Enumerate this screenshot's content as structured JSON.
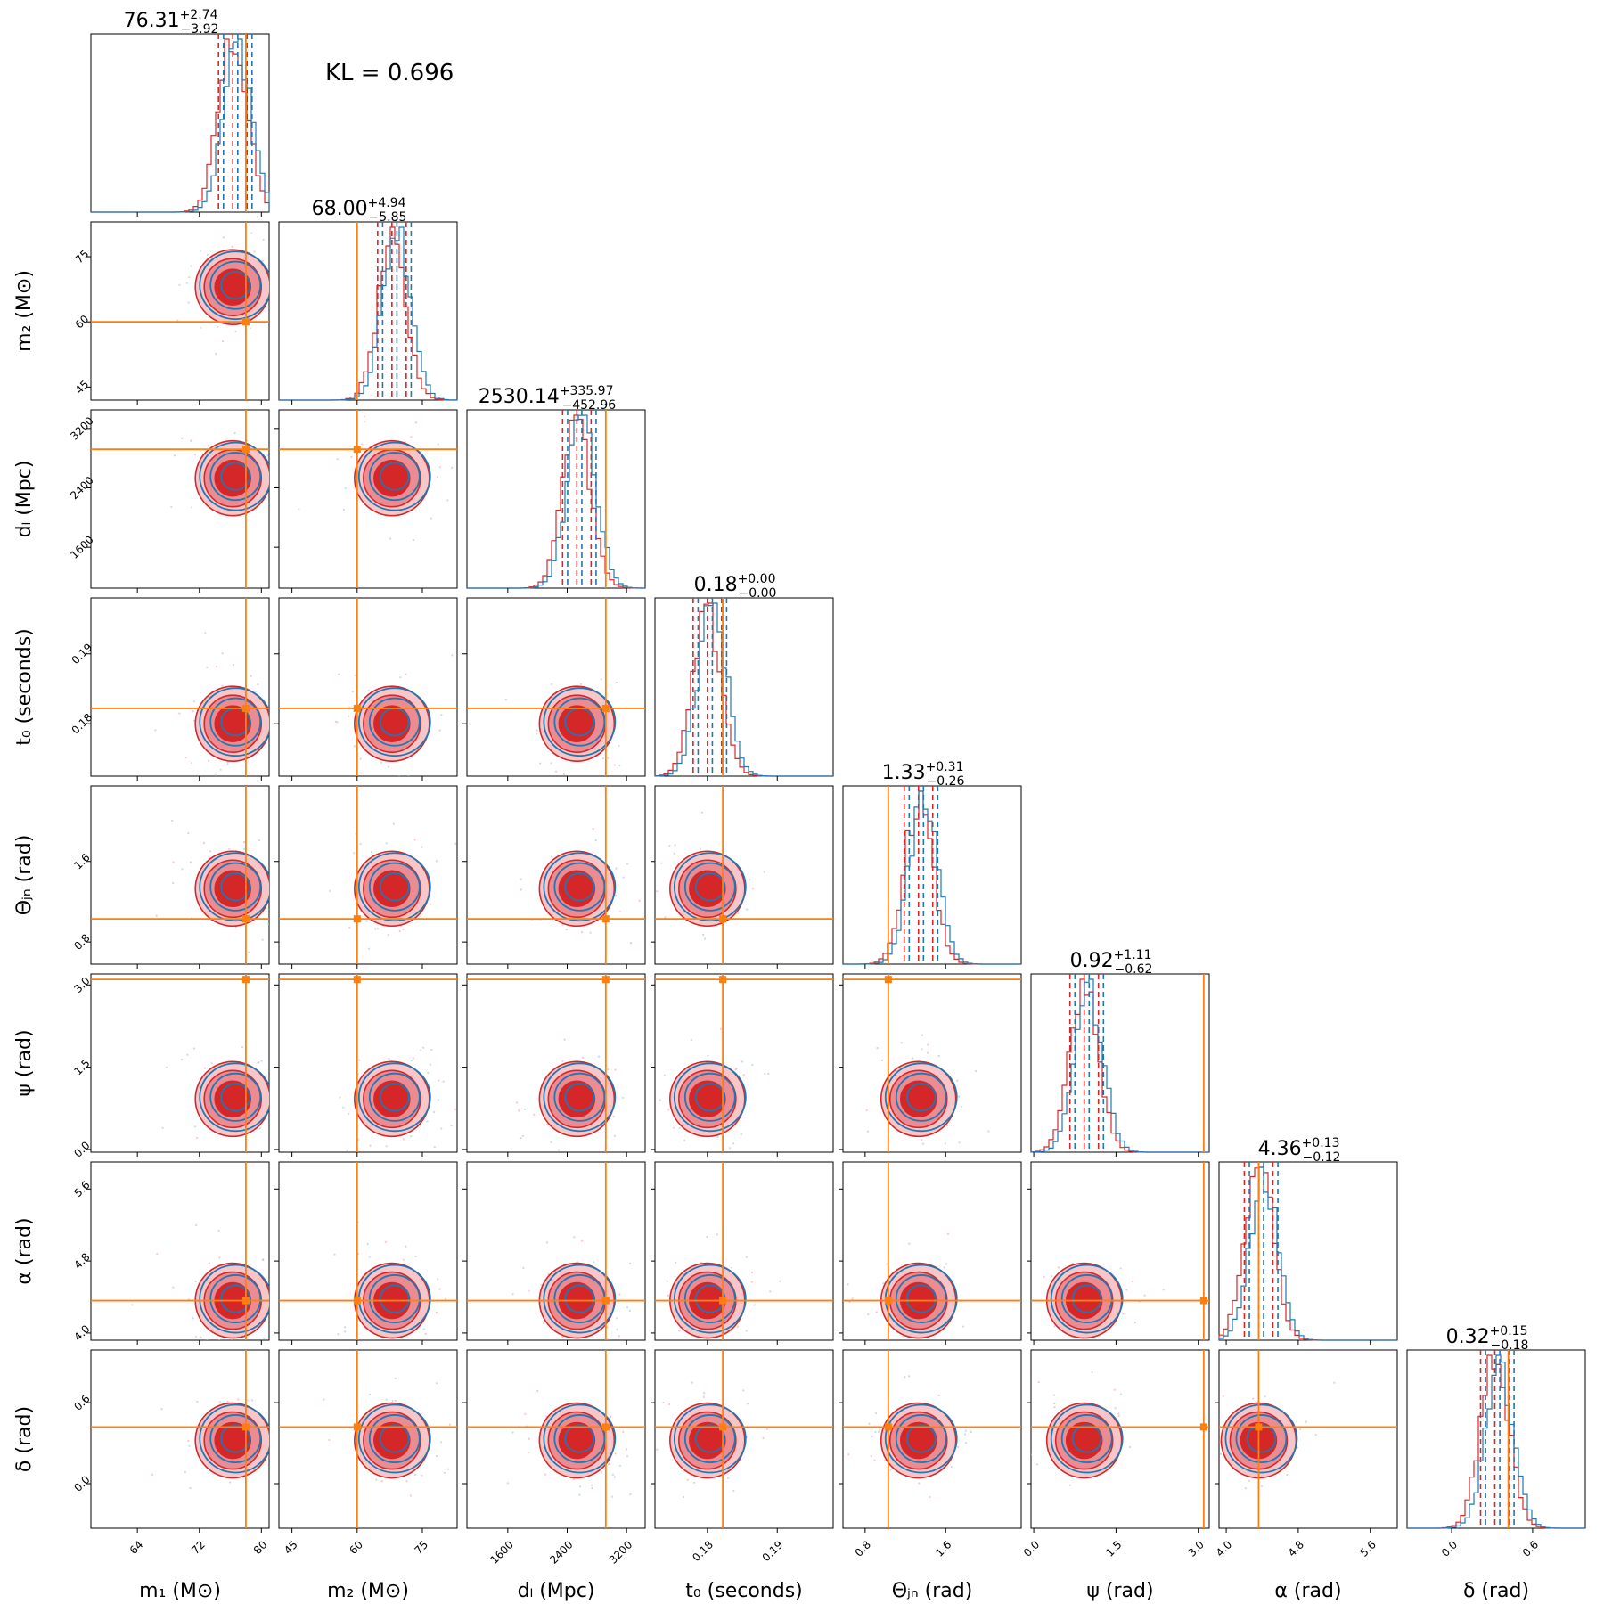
{
  "chart_data": {
    "type": "corner",
    "annotation": "KL = 0.696",
    "colors": {
      "series_a": "#d62728",
      "series_b": "#1f77b4",
      "truth": "#ff7f0e"
    },
    "parameters": [
      {
        "id": "m1",
        "label": "m₁ (M⊙)",
        "range": [
          58,
          81
        ],
        "ticks": [
          64,
          72,
          80
        ],
        "tick_labels": [
          "64",
          "72",
          "80"
        ],
        "truth": 78,
        "median": "76.31",
        "plus": "+2.74",
        "minus": "−3.92"
      },
      {
        "id": "m2",
        "label": "m₂ (M⊙)",
        "range": [
          42,
          83
        ],
        "ticks": [
          45,
          60,
          75
        ],
        "tick_labels": [
          "45",
          "60",
          "75"
        ],
        "truth": 60,
        "median": "68.00",
        "plus": "+4.94",
        "minus": "−5.85"
      },
      {
        "id": "dL",
        "label": "dₗ (Mpc)",
        "range": [
          1050,
          3450
        ],
        "ticks": [
          1600,
          2400,
          3200
        ],
        "tick_labels": [
          "1600",
          "2400",
          "3200"
        ],
        "truth": 2920,
        "median": "2530.14",
        "plus": "+335.97",
        "minus": "−452.96"
      },
      {
        "id": "t0",
        "label": "t₀ (seconds)",
        "range": [
          0.1725,
          0.198
        ],
        "ticks": [
          0.18,
          0.19
        ],
        "tick_labels": [
          "0.18",
          "0.19"
        ],
        "truth": 0.1822,
        "median": "0.18",
        "plus": "+0.00",
        "minus": "−0.00"
      },
      {
        "id": "theta",
        "label": "Θⱼₙ (rad)",
        "range": [
          0.58,
          2.35
        ],
        "ticks": [
          0.8,
          1.6
        ],
        "tick_labels": [
          "0.8",
          "1.6"
        ],
        "truth": 1.03,
        "median": "1.33",
        "plus": "+0.31",
        "minus": "−0.26"
      },
      {
        "id": "psi",
        "label": "ψ (rad)",
        "range": [
          -0.05,
          3.2
        ],
        "ticks": [
          0.0,
          1.5,
          3.0
        ],
        "tick_labels": [
          "0.0",
          "1.5",
          "3.0"
        ],
        "truth": 3.1,
        "median": "0.92",
        "plus": "+1.11",
        "minus": "−0.62"
      },
      {
        "id": "alpha",
        "label": "α (rad)",
        "range": [
          3.92,
          5.9
        ],
        "ticks": [
          4.0,
          4.8,
          5.6
        ],
        "tick_labels": [
          "4.0",
          "4.8",
          "5.6"
        ],
        "truth": 4.36,
        "median": "4.36",
        "plus": "+0.13",
        "minus": "−0.12"
      },
      {
        "id": "delta",
        "label": "δ (rad)",
        "range": [
          -0.33,
          0.99
        ],
        "ticks": [
          0.0,
          0.6
        ],
        "tick_labels": [
          "0.0",
          "0.6"
        ],
        "truth": 0.42,
        "median": "0.32",
        "plus": "+0.15",
        "minus": "−0.18"
      }
    ]
  }
}
